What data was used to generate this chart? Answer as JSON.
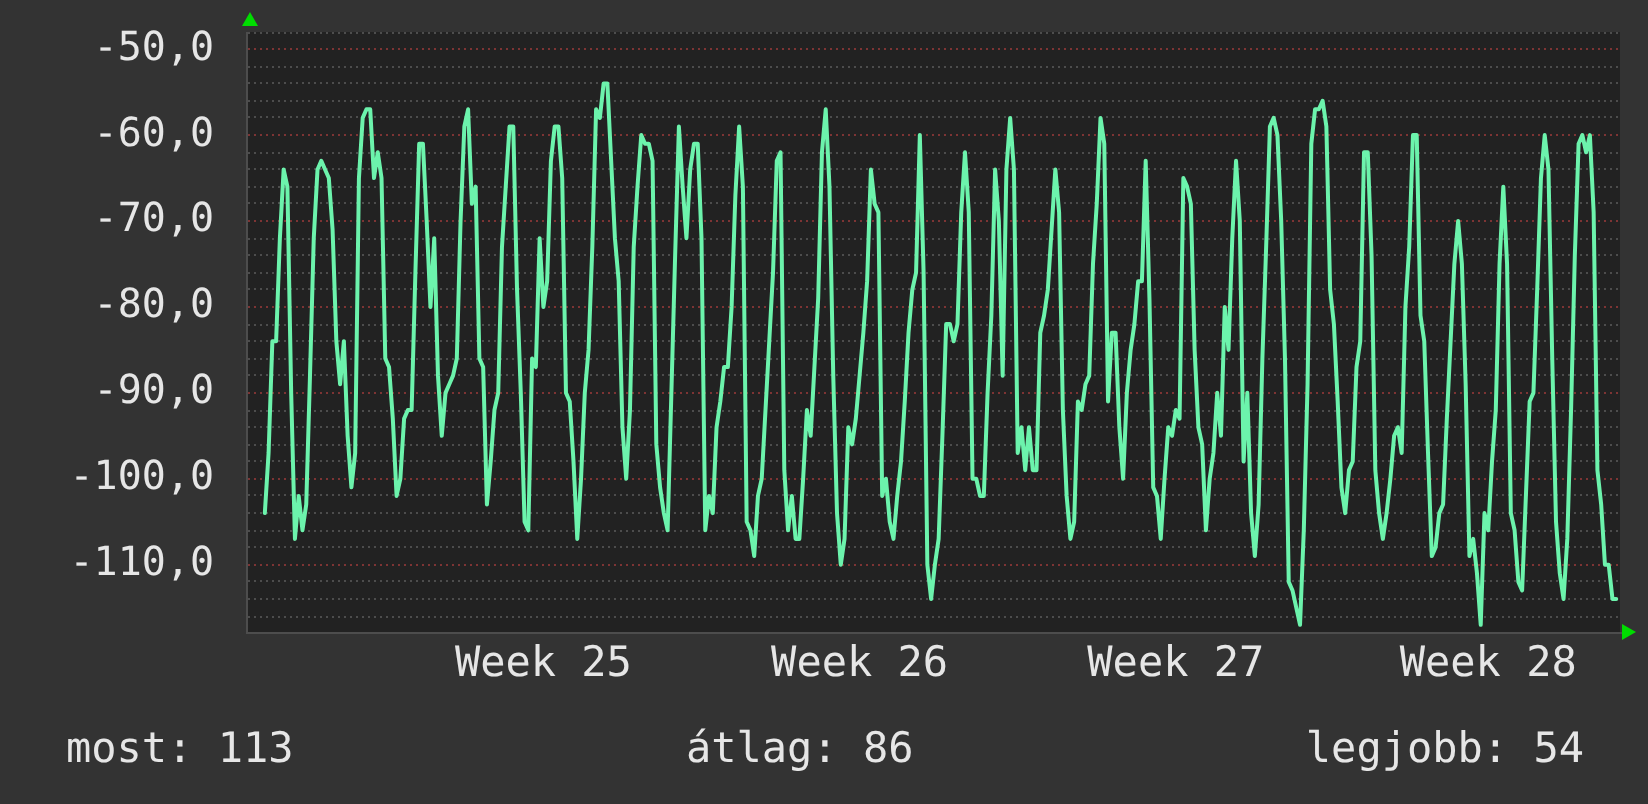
{
  "chart_data": {
    "type": "line",
    "color": "#6cf3ac",
    "marker": "none",
    "grid": "y",
    "categories": [
      null,
      null,
      null,
      null,
      null,
      null,
      null,
      null,
      null,
      null,
      null,
      null,
      null,
      null,
      null,
      null,
      null,
      null,
      null,
      null,
      null,
      null,
      null,
      null,
      null,
      null,
      null,
      null,
      null,
      null,
      null,
      null,
      null,
      null,
      null,
      null,
      null,
      null,
      null,
      null,
      null,
      null,
      null,
      null,
      null,
      null,
      null,
      null,
      null,
      null,
      null,
      null,
      null,
      null,
      null,
      null,
      null,
      null,
      null,
      null,
      null,
      null,
      null,
      null,
      null,
      null,
      null,
      null,
      null,
      null,
      null,
      null,
      null,
      null,
      null,
      null,
      null,
      null,
      null,
      "Week 25",
      null,
      null,
      null,
      null,
      null,
      null,
      null,
      null,
      null,
      null,
      null,
      null,
      null,
      null,
      null,
      null,
      null,
      null,
      null,
      null,
      null,
      null,
      null,
      null,
      null,
      null,
      null,
      null,
      null,
      null,
      null,
      null,
      null,
      null,
      null,
      null,
      null,
      null,
      null,
      null,
      null,
      null,
      null,
      null,
      null,
      null,
      null,
      null,
      null,
      null,
      null,
      null,
      null,
      null,
      null,
      null,
      null,
      null,
      null,
      null,
      null,
      null,
      null,
      null,
      null,
      null,
      null,
      null,
      null,
      null,
      null,
      null,
      null,
      null,
      null,
      null,
      null,
      null,
      null,
      null,
      null,
      null,
      null,
      "Week 26",
      null,
      null,
      null,
      null,
      null,
      null,
      null,
      null,
      null,
      null,
      null,
      null,
      null,
      null,
      null,
      null,
      null,
      null,
      null,
      null,
      null,
      null,
      null,
      null,
      null,
      null,
      null,
      null,
      null,
      null,
      null,
      null,
      null,
      null,
      null,
      null,
      null,
      null,
      null,
      null,
      null,
      null,
      null,
      null,
      null,
      null,
      null,
      null,
      null,
      null,
      null,
      null,
      null,
      null,
      null,
      null,
      null,
      null,
      null,
      null,
      null,
      null,
      null,
      null,
      null,
      null,
      null,
      null,
      null,
      null,
      null,
      null,
      null,
      null,
      null,
      null,
      null,
      null,
      null,
      null,
      null,
      null,
      null,
      "Week 27",
      null,
      null,
      null,
      null,
      null,
      null,
      null,
      null,
      null,
      null,
      null,
      null,
      null,
      null,
      null,
      null,
      null,
      null,
      null,
      null,
      null,
      null,
      null,
      null,
      null,
      null,
      null,
      null,
      null,
      null,
      null,
      null,
      null,
      null,
      null,
      null,
      null,
      null,
      null,
      null,
      null,
      null,
      null,
      null,
      null,
      null,
      null,
      null,
      null,
      null,
      null,
      null,
      null,
      null,
      null,
      null,
      null,
      null,
      null,
      null,
      null,
      null,
      null,
      null,
      null,
      null,
      null,
      null,
      null,
      null,
      null,
      null,
      null,
      null,
      null,
      null,
      null,
      null,
      null,
      null,
      null,
      null,
      "Week 28",
      null,
      null,
      null,
      null,
      null,
      null,
      null,
      null,
      null,
      null,
      null,
      null,
      null,
      null,
      null,
      null,
      null,
      null,
      null,
      null,
      null,
      null,
      null,
      null,
      null,
      null,
      null,
      null,
      null,
      null,
      null,
      null,
      null,
      null,
      null
    ],
    "ylim": [
      -118,
      -48
    ],
    "yticks": [
      {
        "value": -118,
        "label": null
      },
      {
        "value": -116,
        "label": null
      },
      {
        "value": -114,
        "label": null
      },
      {
        "value": -112,
        "label": null
      },
      {
        "value": -110,
        "label": "-110,0"
      },
      {
        "value": -108,
        "label": null
      },
      {
        "value": -106,
        "label": null
      },
      {
        "value": -104,
        "label": null
      },
      {
        "value": -102,
        "label": null
      },
      {
        "value": -100,
        "label": "-100,0"
      },
      {
        "value": -98,
        "label": null
      },
      {
        "value": -96,
        "label": null
      },
      {
        "value": -94,
        "label": null
      },
      {
        "value": -92,
        "label": null
      },
      {
        "value": -90,
        "label": "-90,0"
      },
      {
        "value": -88,
        "label": null
      },
      {
        "value": -86,
        "label": null
      },
      {
        "value": -84,
        "label": null
      },
      {
        "value": -82,
        "label": null
      },
      {
        "value": -80,
        "label": "-80,0"
      },
      {
        "value": -78,
        "label": null
      },
      {
        "value": -76,
        "label": null
      },
      {
        "value": -74,
        "label": null
      },
      {
        "value": -72,
        "label": null
      },
      {
        "value": -70,
        "label": "-70,0"
      },
      {
        "value": -68,
        "label": null
      },
      {
        "value": -66,
        "label": null
      },
      {
        "value": -64,
        "label": null
      },
      {
        "value": -62,
        "label": null
      },
      {
        "value": -60,
        "label": "-60,0"
      },
      {
        "value": -58,
        "label": null
      },
      {
        "value": -56,
        "label": null
      },
      {
        "value": -54,
        "label": null
      },
      {
        "value": -52,
        "label": null
      },
      {
        "value": -50,
        "label": "-50,0"
      },
      {
        "value": -48,
        "label": null
      }
    ],
    "annotations": [
      "most: 113",
      "átlag: 86",
      "legjobb: 54"
    ],
    "values": [
      null,
      null,
      null,
      null,
      null,
      -104,
      -97,
      -84,
      -84,
      -72,
      -64,
      -66,
      -90,
      -107,
      -102,
      -106,
      -103,
      -88,
      -72,
      -64,
      -63,
      -64,
      -65,
      -71,
      -84,
      -89,
      -84,
      -95,
      -101,
      -97,
      -65,
      -58,
      -57,
      -57,
      -65,
      -62,
      -65,
      -86,
      -87,
      -93,
      -102,
      -100,
      -93,
      -92,
      -92,
      -76,
      -61,
      -61,
      -70,
      -80,
      -72,
      -88,
      -95,
      -90,
      -89,
      -88,
      -86,
      -70,
      -59,
      -57,
      -68,
      -66,
      -86,
      -87,
      -103,
      -98,
      -92,
      -90,
      -73,
      -66,
      -59,
      -59,
      -78,
      -90,
      -105,
      -106,
      -86,
      -87,
      -72,
      -80,
      -77,
      -63,
      -59,
      -59,
      -65,
      -90,
      -91,
      -98,
      -107,
      -100,
      -90,
      -85,
      -73,
      -57,
      -58,
      -54,
      -54,
      -63,
      -72,
      -77,
      -94,
      -100,
      -92,
      -73,
      -66,
      -60,
      -61,
      -61,
      -63,
      -96,
      -101,
      -104,
      -106,
      -90,
      -74,
      -59,
      -66,
      -72,
      -64,
      -61,
      -61,
      -72,
      -106,
      -102,
      -104,
      -94,
      -91,
      -87,
      -87,
      -80,
      -67,
      -59,
      -66,
      -105,
      -106,
      -109,
      -102,
      -100,
      -92,
      -84,
      -76,
      -63,
      -62,
      -99,
      -106,
      -102,
      -107,
      -107,
      -100,
      -92,
      -95,
      -87,
      -79,
      -62,
      -57,
      -66,
      -88,
      -104,
      -110,
      -107,
      -94,
      -96,
      -93,
      -88,
      -83,
      -77,
      -64,
      -68,
      -69,
      -102,
      -100,
      -105,
      -107,
      -102,
      -98,
      -91,
      -83,
      -78,
      -76,
      -60,
      -76,
      -110,
      -114,
      -110,
      -107,
      -95,
      -82,
      -82,
      -84,
      -82,
      -69,
      -62,
      -69,
      -100,
      -100,
      -102,
      -102,
      -90,
      -81,
      -64,
      -70,
      -88,
      -64,
      -58,
      -64,
      -97,
      -94,
      -99,
      -94,
      -99,
      -99,
      -83,
      -81,
      -78,
      -71,
      -64,
      -69,
      -92,
      -102,
      -107,
      -105,
      -91,
      -92,
      -89,
      -88,
      -75,
      -68,
      -58,
      -61,
      -91,
      -83,
      -83,
      -94,
      -100,
      -90,
      -85,
      -82,
      -77,
      -77,
      -63,
      -79,
      -101,
      -102,
      -107,
      -100,
      -94,
      -95,
      -92,
      -93,
      -65,
      -66,
      -68,
      -85,
      -94,
      -96,
      -106,
      -100,
      -97,
      -90,
      -95,
      -80,
      -85,
      -72,
      -63,
      -70,
      -98,
      -90,
      -104,
      -109,
      -103,
      -86,
      -73,
      -59,
      -58,
      -60,
      -70,
      -86,
      -112,
      -113,
      -115,
      -117,
      -106,
      -89,
      -61,
      -57,
      -57,
      -56,
      -59,
      -78,
      -82,
      -91,
      -101,
      -104,
      -99,
      -98,
      -87,
      -84,
      -62,
      -62,
      -74,
      -99,
      -104,
      -107,
      -104,
      -100,
      -95,
      -94,
      -97,
      -80,
      -73,
      -60,
      -60,
      -81,
      -84,
      -97,
      -109,
      -108,
      -104,
      -103,
      -93,
      -84,
      -75,
      -70,
      -75,
      -89,
      -109,
      -107,
      -111,
      -117,
      -104,
      -106,
      -98,
      -92,
      -75,
      -66,
      -75,
      -104,
      -106,
      -112,
      -113,
      -102,
      -91,
      -90,
      -78,
      -65,
      -60,
      -64,
      -86,
      -105,
      -111,
      -114,
      -107,
      -92,
      -74,
      -61,
      -60,
      -62,
      -60,
      -69,
      -99,
      -103,
      -110,
      -110,
      -114,
      -114,
      null
    ]
  }
}
